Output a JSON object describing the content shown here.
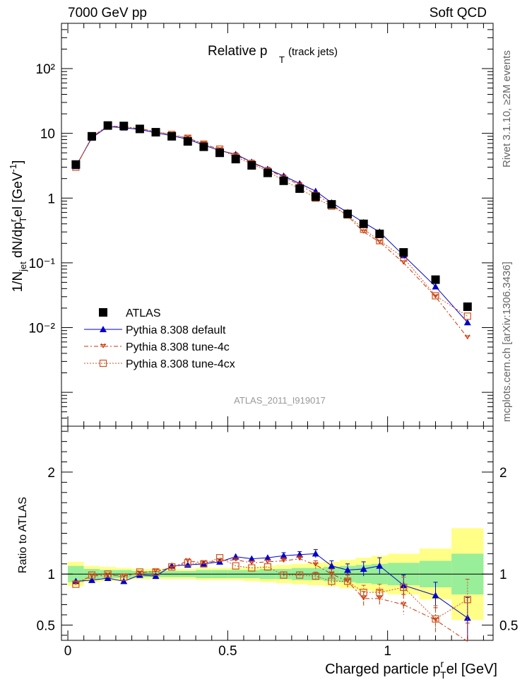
{
  "header": {
    "left": "7000 GeV pp",
    "right": "Soft QCD"
  },
  "side_labels": {
    "rivet": "Rivet 3.1.10, ≥2M events",
    "mcplots": "mcplots.cern.ch [arXiv:1306.3436]"
  },
  "main_panel": {
    "title_main": "Relative p",
    "title_sub": "T",
    "title_tail": " (track jets)",
    "analysis_tag": "ATLAS_2011_I919017",
    "y_label": "1/N_jet dN/dp_T^rel [GeV^-1]",
    "y_ticks": [
      "10⁻²",
      "10⁻¹",
      "1",
      "10",
      "10²"
    ]
  },
  "ratio_panel": {
    "y_label": "Ratio to ATLAS",
    "y_ticks": [
      "0.5",
      "1",
      "2"
    ]
  },
  "x_axis": {
    "label": "Charged particle p_T^rel [GeV]",
    "ticks": [
      "0",
      "0.5",
      "1"
    ]
  },
  "legend": [
    {
      "label": "ATLAS",
      "color": "#000000",
      "marker": "filled-square"
    },
    {
      "label": "Pythia 8.308 default",
      "color": "#0000cc",
      "marker": "filled-triangle"
    },
    {
      "label": "Pythia 8.308 tune-4c",
      "color": "#cc3300",
      "marker": "star"
    },
    {
      "label": "Pythia 8.308 tune-4cx",
      "color": "#cc5522",
      "marker": "open-square"
    }
  ],
  "chart_data": {
    "type": "scatter",
    "x_scale": "linear",
    "y_scale": "log",
    "xlim": [
      -0.02,
      1.33
    ],
    "ylim": [
      0.0003,
      500
    ],
    "ratio_ylim": [
      0.35,
      2.45
    ],
    "x": [
      0.025,
      0.075,
      0.125,
      0.175,
      0.225,
      0.275,
      0.325,
      0.375,
      0.425,
      0.475,
      0.525,
      0.575,
      0.625,
      0.675,
      0.725,
      0.775,
      0.825,
      0.875,
      0.925,
      0.975,
      1.05,
      1.15,
      1.25
    ],
    "bin_edges": [
      0.0,
      0.05,
      0.1,
      0.15,
      0.2,
      0.25,
      0.3,
      0.35,
      0.4,
      0.45,
      0.5,
      0.55,
      0.6,
      0.65,
      0.7,
      0.75,
      0.8,
      0.85,
      0.9,
      0.95,
      1.0,
      1.1,
      1.2,
      1.3
    ],
    "series": [
      {
        "name": "ATLAS",
        "values": [
          3.3,
          9.0,
          13.2,
          13.0,
          11.7,
          10.4,
          9.0,
          7.5,
          6.2,
          5.0,
          4.0,
          3.2,
          2.45,
          1.85,
          1.4,
          1.05,
          0.8,
          0.57,
          0.4,
          0.28,
          0.145,
          0.055,
          0.021
        ],
        "ratio": [
          1,
          1,
          1,
          1,
          1,
          1,
          1,
          1,
          1,
          1,
          1,
          1,
          1,
          1,
          1,
          1,
          1,
          1,
          1,
          1,
          1,
          1,
          1
        ],
        "band_inner": [
          0.08,
          0.05,
          0.04,
          0.04,
          0.03,
          0.03,
          0.03,
          0.03,
          0.04,
          0.04,
          0.04,
          0.04,
          0.05,
          0.05,
          0.06,
          0.06,
          0.07,
          0.08,
          0.09,
          0.1,
          0.11,
          0.13,
          0.2
        ],
        "band_outer": [
          0.12,
          0.08,
          0.07,
          0.06,
          0.05,
          0.05,
          0.05,
          0.05,
          0.06,
          0.06,
          0.06,
          0.07,
          0.08,
          0.09,
          0.1,
          0.11,
          0.12,
          0.14,
          0.16,
          0.18,
          0.2,
          0.25,
          0.45
        ]
      },
      {
        "name": "Pythia 8.308 default",
        "values": [
          3.1,
          8.5,
          12.7,
          12.2,
          11.5,
          10.2,
          9.2,
          8.1,
          6.6,
          5.4,
          4.75,
          3.6,
          2.8,
          2.2,
          1.68,
          1.28,
          0.85,
          0.6,
          0.42,
          0.3,
          0.13,
          0.043,
          0.012
        ],
        "ratio": [
          0.93,
          0.94,
          0.96,
          0.93,
          0.99,
          0.98,
          1.08,
          1.09,
          1.1,
          1.12,
          1.17,
          1.15,
          1.16,
          1.18,
          1.19,
          1.2,
          1.08,
          1.04,
          1.05,
          1.08,
          0.89,
          0.79,
          0.57
        ],
        "ratio_err": [
          0.02,
          0.01,
          0.01,
          0.01,
          0.01,
          0.01,
          0.01,
          0.01,
          0.01,
          0.01,
          0.02,
          0.02,
          0.02,
          0.03,
          0.03,
          0.04,
          0.05,
          0.06,
          0.07,
          0.08,
          0.1,
          0.13,
          0.2
        ]
      },
      {
        "name": "Pythia 8.308 tune-4c",
        "values": [
          3.0,
          8.8,
          13.0,
          12.5,
          11.8,
          10.7,
          9.5,
          8.5,
          6.9,
          5.6,
          4.6,
          3.55,
          2.75,
          2.1,
          1.6,
          1.15,
          0.8,
          0.53,
          0.3,
          0.21,
          0.1,
          0.03,
          0.007
        ],
        "ratio": [
          0.91,
          0.98,
          0.99,
          0.98,
          1.01,
          1.03,
          1.06,
          1.13,
          1.11,
          1.13,
          1.14,
          1.11,
          1.12,
          1.13,
          1.15,
          1.09,
          1.0,
          0.93,
          0.76,
          0.76,
          0.7,
          0.55,
          0.34
        ],
        "ratio_err": [
          0.02,
          0.01,
          0.01,
          0.01,
          0.01,
          0.01,
          0.01,
          0.01,
          0.01,
          0.02,
          0.02,
          0.02,
          0.02,
          0.03,
          0.03,
          0.04,
          0.05,
          0.06,
          0.07,
          0.08,
          0.1,
          0.12,
          0.18
        ]
      },
      {
        "name": "Pythia 8.308 tune-4cx",
        "values": [
          3.0,
          8.9,
          13.1,
          12.7,
          11.9,
          10.6,
          9.6,
          8.4,
          6.8,
          5.7,
          4.3,
          3.4,
          2.6,
          1.85,
          1.4,
          1.0,
          0.75,
          0.55,
          0.33,
          0.22,
          0.12,
          0.031,
          0.015
        ],
        "ratio": [
          0.9,
          0.99,
          1.0,
          0.97,
          1.02,
          1.02,
          1.07,
          1.11,
          1.1,
          1.16,
          1.08,
          1.06,
          1.07,
          0.99,
          0.99,
          0.98,
          0.93,
          0.93,
          0.82,
          0.82,
          0.87,
          0.56,
          0.75
        ],
        "ratio_err": [
          0.02,
          0.01,
          0.01,
          0.01,
          0.01,
          0.01,
          0.01,
          0.01,
          0.01,
          0.02,
          0.02,
          0.02,
          0.02,
          0.03,
          0.03,
          0.04,
          0.05,
          0.06,
          0.07,
          0.08,
          0.1,
          0.13,
          0.2
        ]
      }
    ]
  }
}
